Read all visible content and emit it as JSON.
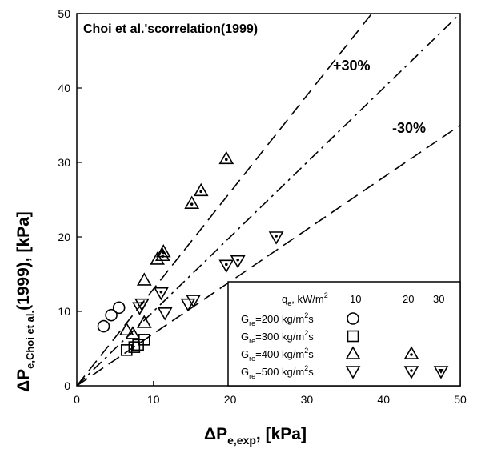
{
  "chart_data": {
    "type": "scatter",
    "title": "Choi et al.'scorrelation(1999)",
    "xlabel": {
      "main": "ΔP",
      "sub": "e,exp",
      "tail": ", [kPa]"
    },
    "ylabel": {
      "main": "ΔP",
      "sub": "e,Choi et al.",
      "tail": "(1999), [kPa]"
    },
    "xlim": [
      0,
      50
    ],
    "ylim": [
      0,
      50
    ],
    "xticks": [
      0,
      10,
      20,
      30,
      40,
      50
    ],
    "yticks": [
      0,
      10,
      20,
      30,
      40,
      50
    ],
    "grid": false,
    "reference_lines": [
      {
        "label": "+30%",
        "slope": 1.3,
        "style": "dashed"
      },
      {
        "label": "",
        "slope": 1.0,
        "style": "dashdot"
      },
      {
        "label": "-30%",
        "slope": 0.7,
        "style": "dashed"
      }
    ],
    "legend": {
      "placement": "bottom-right",
      "header": {
        "prefix": "q",
        "sub": "e",
        "suffix": ", kW/m",
        "sup": "2"
      },
      "columns": [
        "10",
        "20",
        "30"
      ],
      "rows": [
        {
          "prefix": "G",
          "sub": "re",
          "text": "=200 kg/m",
          "sup": "2",
          "tail": "s",
          "marker": "circle",
          "cols": [
            1,
            0,
            0
          ]
        },
        {
          "prefix": "G",
          "sub": "re",
          "text": "=300 kg/m",
          "sup": "2",
          "tail": "s",
          "marker": "square",
          "cols": [
            1,
            0,
            0
          ]
        },
        {
          "prefix": "G",
          "sub": "re",
          "text": "=400 kg/m",
          "sup": "2",
          "tail": "s",
          "marker": "triangle-up",
          "cols": [
            1,
            1,
            0
          ]
        },
        {
          "prefix": "G",
          "sub": "re",
          "text": "=500 kg/m",
          "sup": "2",
          "tail": "s",
          "marker": "triangle-down",
          "cols": [
            1,
            1,
            1
          ]
        }
      ]
    },
    "series": [
      {
        "name": "G=200 kg/m2s, q=10",
        "marker": "circle",
        "fill": "none",
        "points": [
          [
            3.5,
            8.0
          ],
          [
            4.5,
            9.5
          ],
          [
            5.5,
            10.5
          ]
        ]
      },
      {
        "name": "G=300 kg/m2s, q=10",
        "marker": "square",
        "fill": "none",
        "points": [
          [
            6.5,
            4.8
          ],
          [
            7.5,
            5.2
          ],
          [
            8.0,
            5.5
          ],
          [
            8.8,
            6.2
          ]
        ]
      },
      {
        "name": "G=400 kg/m2s, q=10",
        "marker": "triangle-up",
        "fill": "none",
        "points": [
          [
            6.5,
            7.5
          ],
          [
            7.3,
            7.0
          ],
          [
            8.8,
            8.5
          ],
          [
            8.8,
            14.2
          ],
          [
            10.5,
            17.0
          ]
        ]
      },
      {
        "name": "G=400 kg/m2s, q=20",
        "marker": "triangle-up",
        "fill": "dot",
        "points": [
          [
            11.2,
            17.5
          ],
          [
            11.3,
            18.0
          ],
          [
            15.0,
            24.5
          ],
          [
            16.2,
            26.2
          ],
          [
            19.5,
            30.5
          ]
        ]
      },
      {
        "name": "G=500 kg/m2s, q=10",
        "marker": "triangle-down",
        "fill": "none",
        "points": [
          [
            8.2,
            10.5
          ],
          [
            11.5,
            9.8
          ],
          [
            14.5,
            11.0
          ],
          [
            15.2,
            11.5
          ]
        ]
      },
      {
        "name": "G=500 kg/m2s, q=20",
        "marker": "triangle-down",
        "fill": "dot",
        "points": [
          [
            8.5,
            11.0
          ],
          [
            11.0,
            12.5
          ],
          [
            19.5,
            16.2
          ],
          [
            21.0,
            16.8
          ],
          [
            26.0,
            20.0
          ]
        ]
      }
    ]
  }
}
